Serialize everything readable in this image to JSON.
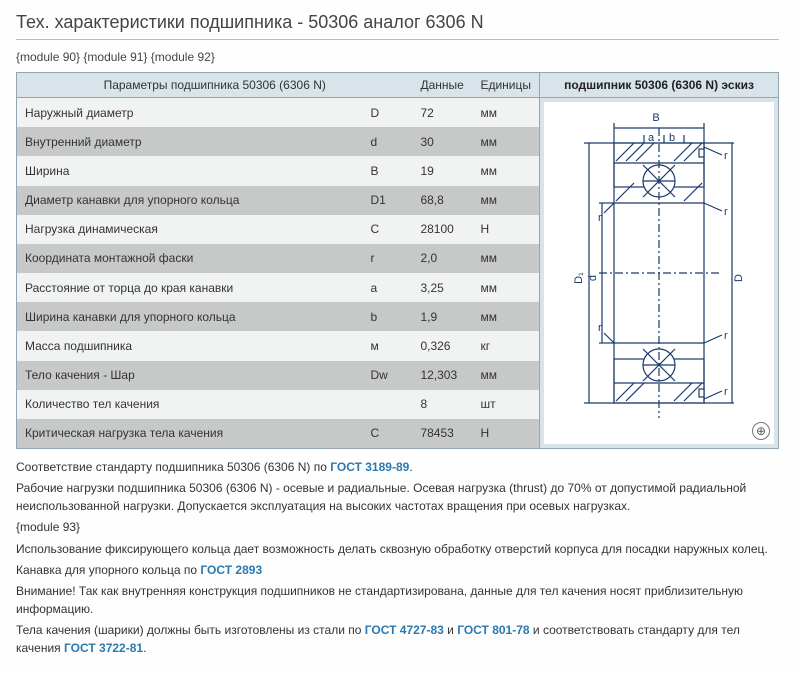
{
  "title": "Тех. характеристики подшипника - 50306 аналог 6306 N",
  "modules_top": "{module 90} {module 91} {module 92}",
  "headers": {
    "param": "Параметры подшипника 50306 (6306 N)",
    "sym": "",
    "val": "Данные",
    "unit": "Единицы",
    "fig": "подшипник 50306 (6306 N) эскиз"
  },
  "rows": [
    {
      "param": "Наружный диаметр",
      "sym": "D",
      "val": "72",
      "unit": "мм"
    },
    {
      "param": "Внутренний диаметр",
      "sym": "d",
      "val": "30",
      "unit": "мм"
    },
    {
      "param": "Ширина",
      "sym": "B",
      "val": "19",
      "unit": "мм"
    },
    {
      "param": "Диаметр канавки для упорного кольца",
      "sym": "D1",
      "val": "68,8",
      "unit": "мм"
    },
    {
      "param": "Нагрузка динамическая",
      "sym": "C",
      "val": "28100",
      "unit": "Н"
    },
    {
      "param": "Координата монтажной фаски",
      "sym": "r",
      "val": "2,0",
      "unit": "мм"
    },
    {
      "param": "Расстояние от торца до края канавки",
      "sym": "a",
      "val": "3,25",
      "unit": "мм"
    },
    {
      "param": "Ширина канавки для упорного кольца",
      "sym": "b",
      "val": "1,9",
      "unit": "мм"
    },
    {
      "param": "Масса подшипника",
      "sym": "м",
      "val": "0,326",
      "unit": "кг"
    },
    {
      "param": "Тело качения - Шар",
      "sym": "Dw",
      "val": "12,303",
      "unit": "мм"
    },
    {
      "param": "Количество тел качения",
      "sym": "",
      "val": "8",
      "unit": "шт"
    },
    {
      "param": "Критическая нагрузка тела качения",
      "sym": "C",
      "val": "78453",
      "unit": "Н"
    }
  ],
  "colors": {
    "header_bg": "#d8e4ea",
    "border": "#94a6b0",
    "row_odd": "#f1f3f2",
    "row_even": "#c7c9c8",
    "link": "#2a7ab0",
    "text": "#333333",
    "drawing_stroke": "#1a3a6a"
  },
  "para1_pre": "Соответствие стандарту подшипника 50306 (6306 N) по ",
  "link1": "ГОСТ 3189-89",
  "para1_post": ".",
  "para2": "Рабочие нагрузки подшипника 50306 (6306 N) - осевые и радиальные. Осевая нагрузка (thrust) до 70% от допустимой радиальной неиспользованной нагрузки. Допускается эксплуатация на высоких частотах вращения при осевых нагрузках.",
  "modules_mid": "{module 93}",
  "para3": "Использование фиксирующего кольца дает возможность делать сквозную обработку отверстий корпуса для посадки наружных колец.",
  "para4_pre": "Канавка для упорного кольца по ",
  "link2": "ГОСТ 2893",
  "para5": "Внимание! Так как внутренняя конструкция подшипников не стандартизирована, данные для тел качения носят приблизительную информацию.",
  "para6_pre": "Тела качения (шарики) должны быть изготовлены из стали по ",
  "link3": "ГОСТ 4727-83",
  "para6_mid": " и ",
  "link4": "ГОСТ 801-78",
  "para6_mid2": " и соответствовать стандарту для тел качения ",
  "link5": "ГОСТ 3722-81",
  "para6_post": ".",
  "drawing": {
    "labels": {
      "B": "B",
      "a": "a",
      "b": "b",
      "D1": "D₁",
      "d": "d",
      "D": "D",
      "r": "r"
    }
  }
}
